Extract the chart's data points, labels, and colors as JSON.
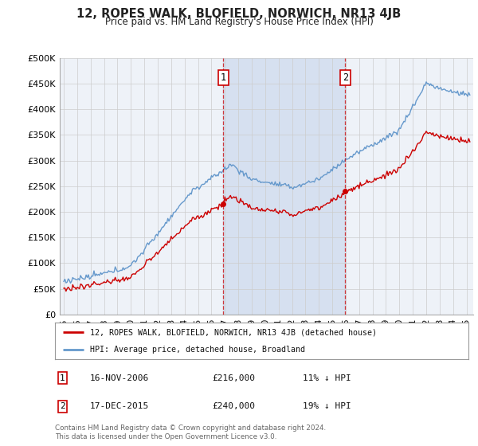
{
  "title": "12, ROPES WALK, BLOFIELD, NORWICH, NR13 4JB",
  "subtitle": "Price paid vs. HM Land Registry's House Price Index (HPI)",
  "ylabel_ticks": [
    "£0",
    "£50K",
    "£100K",
    "£150K",
    "£200K",
    "£250K",
    "£300K",
    "£350K",
    "£400K",
    "£450K",
    "£500K"
  ],
  "ytick_values": [
    0,
    50000,
    100000,
    150000,
    200000,
    250000,
    300000,
    350000,
    400000,
    450000,
    500000
  ],
  "ylim": [
    0,
    500000
  ],
  "xlim_start": 1994.7,
  "xlim_end": 2025.5,
  "hpi_color": "#6699cc",
  "price_color": "#cc0000",
  "annotation_color": "#cc0000",
  "sale1_year": 2006.88,
  "sale1_price": 216000,
  "sale1_label": "1",
  "sale1_date": "16-NOV-2006",
  "sale1_pct": "11% ↓ HPI",
  "sale2_year": 2015.96,
  "sale2_price": 240000,
  "sale2_label": "2",
  "sale2_date": "17-DEC-2015",
  "sale2_pct": "19% ↓ HPI",
  "legend_line1": "12, ROPES WALK, BLOFIELD, NORWICH, NR13 4JB (detached house)",
  "legend_line2": "HPI: Average price, detached house, Broadland",
  "footnote": "Contains HM Land Registry data © Crown copyright and database right 2024.\nThis data is licensed under the Open Government Licence v3.0.",
  "background_color": "#eef2f8",
  "plot_bg_color": "#ffffff",
  "shade_color": "#ccd9ee"
}
